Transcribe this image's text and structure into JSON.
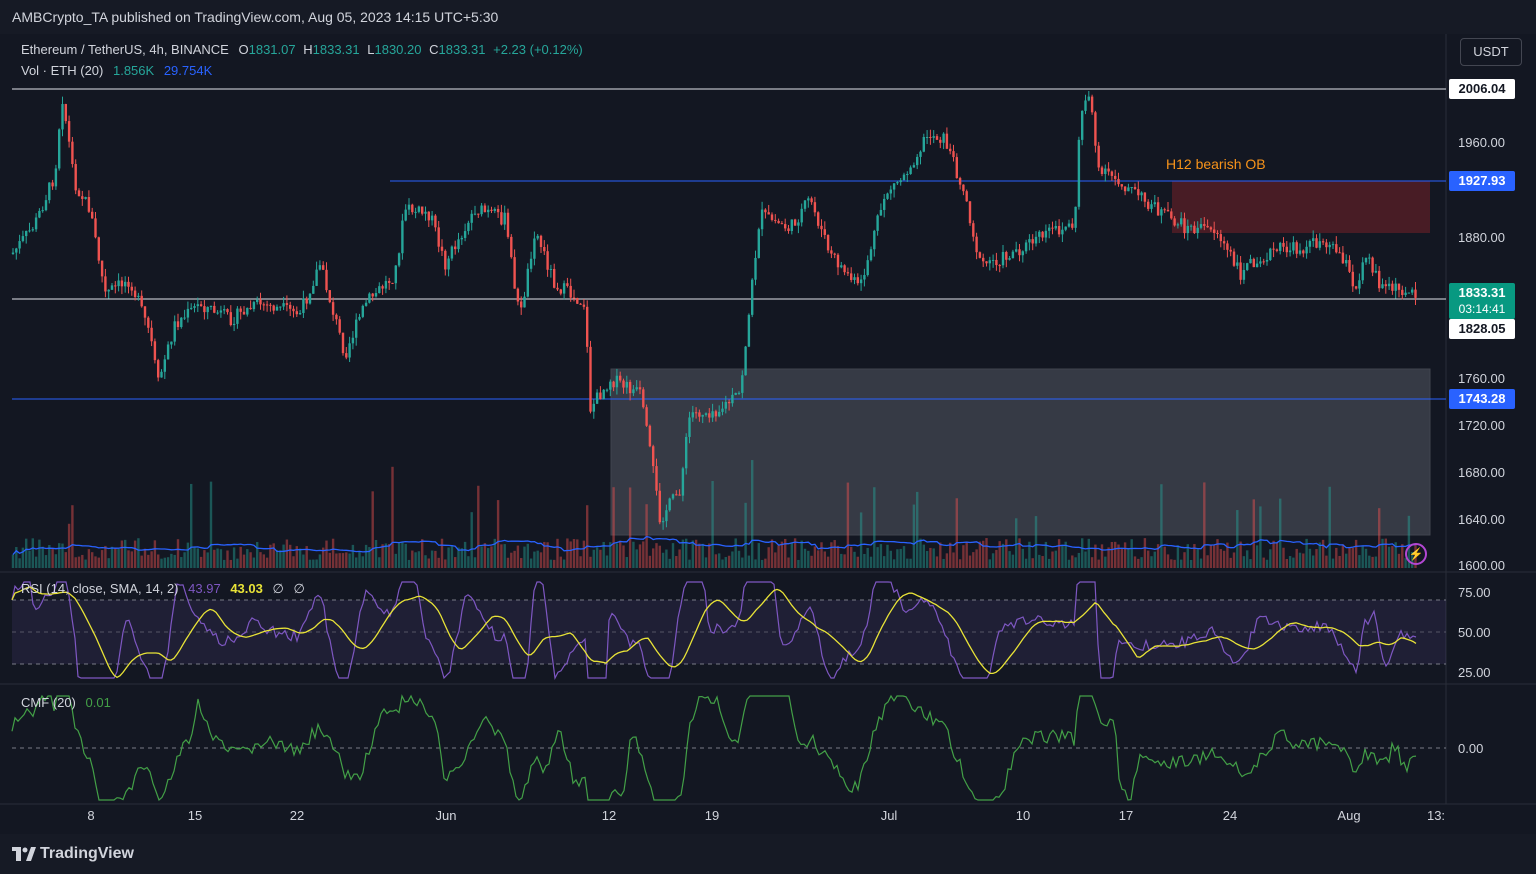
{
  "header": {
    "publisher_line": "AMBCrypto_TA published on TradingView.com, Aug 05, 2023 14:15 UTC+5:30"
  },
  "symbol": {
    "title": "Ethereum / TetherUS, 4h, BINANCE",
    "o_label": "O",
    "o": "1831.07",
    "h_label": "H",
    "h": "1833.31",
    "l_label": "L",
    "l": "1830.20",
    "c_label": "C",
    "c": "1833.31",
    "change": "+2.23 (+0.12%)"
  },
  "volume": {
    "label": "Vol · ETH (20)",
    "v1": "1.856K",
    "v2": "29.754K"
  },
  "currency_button": "USDT",
  "price_axis": {
    "ticks": [
      "1960.00",
      "1880.00",
      "1760.00",
      "1720.00",
      "1680.00",
      "1640.00",
      "1600.00"
    ],
    "tags": {
      "top_line": "2006.04",
      "resistance": "1927.93",
      "current_price": "1833.31",
      "countdown": "03:14:41",
      "low_line": "1828.05",
      "support": "1743.28"
    }
  },
  "annotation": {
    "ob_label": "H12 bearish OB"
  },
  "rsi": {
    "label": "RSI (14, close, SMA, 14, 2)",
    "value": "43.97",
    "sma": "43.03",
    "empty1": "∅",
    "empty2": "∅",
    "ticks": [
      "75.00",
      "50.00",
      "25.00"
    ]
  },
  "cmf": {
    "label": "CMF (20)",
    "value": "0.01",
    "tick": "0.00"
  },
  "time_axis": [
    "8",
    "15",
    "22",
    "Jun",
    "12",
    "19",
    "Jul",
    "10",
    "17",
    "24",
    "Aug",
    "13:"
  ],
  "footer": {
    "brand": "TradingView"
  },
  "colors": {
    "up": "#26a69a",
    "down": "#ef5350",
    "accent_blue": "#2962ff",
    "rsi_line": "#7e57c2",
    "rsi_sma": "#e8e337",
    "cmf_line": "#43a047",
    "volume_ma": "#2962ff",
    "ob_box": "#5b1f27",
    "demand_box": "#787b86"
  },
  "chart_data": [
    {
      "type": "candlestick",
      "title": "Ethereum / TetherUS, 4h, BINANCE",
      "x": [
        "8",
        "15",
        "22",
        "Jun",
        "12",
        "19",
        "Jul",
        "10",
        "17",
        "24",
        "Aug"
      ],
      "close_approx": [
        1895,
        1805,
        1820,
        1905,
        1880,
        1725,
        1915,
        1885,
        1925,
        1865,
        1833.31
      ],
      "horizontal_levels": [
        2006.04,
        1927.93,
        1828.05,
        1743.28
      ],
      "zones": [
        {
          "name": "H12 bearish OB",
          "from": 1883,
          "to": 1928
        },
        {
          "name": "demand zone",
          "from": 1628,
          "to": 1768
        }
      ],
      "ylim": [
        1600,
        2020
      ]
    },
    {
      "type": "line",
      "title": "RSI (14, close, SMA, 14, 2)",
      "last": 43.97,
      "sma_last": 43.03,
      "bands": [
        30,
        50,
        70
      ],
      "ylim": [
        20,
        80
      ]
    },
    {
      "type": "line",
      "title": "CMF (20)",
      "last": 0.01,
      "zero_line": 0.0
    }
  ]
}
